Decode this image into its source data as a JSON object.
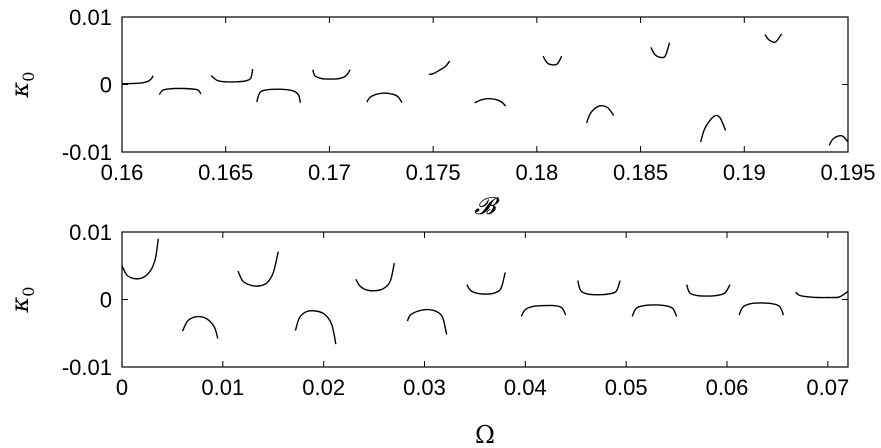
{
  "chart_data": [
    {
      "type": "line",
      "xlabel": "𝓑",
      "ylabel": "κ",
      "ylabel_sub": "0",
      "xlim": [
        0.16,
        0.195
      ],
      "ylim": [
        -0.01,
        0.01
      ],
      "xticks": [
        0.16,
        0.165,
        0.17,
        0.175,
        0.18,
        0.185,
        0.19,
        0.195
      ],
      "xtick_labels": [
        "0.16",
        "0.165",
        "0.17",
        "0.175",
        "0.18",
        "0.185",
        "0.19",
        "0.195"
      ],
      "yticks": [
        -0.01,
        0,
        0.01
      ],
      "ytick_labels": [
        "-0.01",
        "0",
        "0.01"
      ],
      "grid": false,
      "series": [
        {
          "x": [
            0.16,
            0.1608,
            0.1612,
            0.1614,
            0.1615
          ],
          "y": [
            0.0001,
            0.0002,
            0.0004,
            0.0008,
            0.0013
          ]
        },
        {
          "x": [
            0.1618,
            0.162,
            0.1625,
            0.163,
            0.1635,
            0.1637,
            0.1638
          ],
          "y": [
            -0.0015,
            -0.0008,
            -0.0006,
            -0.0006,
            -0.0007,
            -0.0009,
            -0.0014
          ]
        },
        {
          "x": [
            0.1643,
            0.1646,
            0.165,
            0.1655,
            0.1659,
            0.1662,
            0.1663
          ],
          "y": [
            0.0013,
            0.0006,
            0.0004,
            0.0004,
            0.0005,
            0.0009,
            0.0023
          ]
        },
        {
          "x": [
            0.1665,
            0.1666,
            0.1668,
            0.1675,
            0.1682,
            0.1685,
            0.1686
          ],
          "y": [
            -0.0026,
            -0.0015,
            -0.0009,
            -0.0007,
            -0.0009,
            -0.0015,
            -0.0027
          ]
        },
        {
          "x": [
            0.1692,
            0.1693,
            0.1696,
            0.17,
            0.1705,
            0.1708,
            0.171
          ],
          "y": [
            0.0022,
            0.0013,
            0.0009,
            0.0008,
            0.0009,
            0.0013,
            0.0022
          ]
        },
        {
          "x": [
            0.1718,
            0.172,
            0.1725,
            0.173,
            0.1733,
            0.1735
          ],
          "y": [
            -0.0026,
            -0.0018,
            -0.0013,
            -0.0014,
            -0.0018,
            -0.0027
          ]
        },
        {
          "x": [
            0.1748,
            0.175,
            0.1753,
            0.1756,
            0.1758
          ],
          "y": [
            0.0015,
            0.0016,
            0.0021,
            0.0027,
            0.0035
          ]
        },
        {
          "x": [
            0.177,
            0.1773,
            0.1776,
            0.178,
            0.1783,
            0.1785
          ],
          "y": [
            -0.0027,
            -0.0023,
            -0.0021,
            -0.0022,
            -0.0026,
            -0.0032
          ]
        },
        {
          "x": [
            0.1803,
            0.1805,
            0.1808,
            0.181,
            0.1812
          ],
          "y": [
            0.0042,
            0.0032,
            0.0029,
            0.0031,
            0.0042
          ]
        },
        {
          "x": [
            0.1824,
            0.1826,
            0.183,
            0.1834,
            0.1837
          ],
          "y": [
            -0.0057,
            -0.0042,
            -0.0032,
            -0.0034,
            -0.0046
          ]
        },
        {
          "x": [
            0.1855,
            0.1857,
            0.186,
            0.1862,
            0.1864
          ],
          "y": [
            0.0055,
            0.0044,
            0.004,
            0.0043,
            0.0062
          ]
        },
        {
          "x": [
            0.1879,
            0.1881,
            0.1885,
            0.1888,
            0.1891
          ],
          "y": [
            -0.0085,
            -0.0065,
            -0.0048,
            -0.0048,
            -0.0068
          ]
        },
        {
          "x": [
            0.191,
            0.1912,
            0.1915,
            0.1918
          ],
          "y": [
            0.0074,
            0.0066,
            0.0063,
            0.0075
          ]
        },
        {
          "x": [
            0.1941,
            0.1943,
            0.1947,
            0.195
          ],
          "y": [
            -0.009,
            -0.008,
            -0.0076,
            -0.0085
          ]
        }
      ]
    },
    {
      "type": "line",
      "xlabel": "Ω",
      "ylabel": "κ",
      "ylabel_sub": "0",
      "xlim": [
        0,
        0.072
      ],
      "ylim": [
        -0.01,
        0.01
      ],
      "xticks": [
        0,
        0.01,
        0.02,
        0.03,
        0.04,
        0.05,
        0.06,
        0.07
      ],
      "xtick_labels": [
        "0",
        "0.01",
        "0.02",
        "0.03",
        "0.04",
        "0.05",
        "0.06",
        "0.07"
      ],
      "yticks": [
        -0.01,
        0,
        0.01
      ],
      "ytick_labels": [
        "-0.01",
        "0",
        "0.01"
      ],
      "grid": false,
      "series": [
        {
          "x": [
            0,
            0.0005,
            0.0012,
            0.002,
            0.0028,
            0.0033,
            0.0036
          ],
          "y": [
            0.005,
            0.0036,
            0.0031,
            0.0032,
            0.0042,
            0.006,
            0.009
          ]
        },
        {
          "x": [
            0.006,
            0.0065,
            0.0072,
            0.008,
            0.0087,
            0.0092,
            0.0095
          ],
          "y": [
            -0.0047,
            -0.0032,
            -0.0026,
            -0.0026,
            -0.0032,
            -0.0042,
            -0.0058
          ]
        },
        {
          "x": [
            0.0115,
            0.012,
            0.0128,
            0.0136,
            0.0144,
            0.015,
            0.0155
          ],
          "y": [
            0.0042,
            0.0027,
            0.0021,
            0.002,
            0.0025,
            0.004,
            0.0071
          ]
        },
        {
          "x": [
            0.0172,
            0.0176,
            0.0183,
            0.0192,
            0.0201,
            0.0208,
            0.0212
          ],
          "y": [
            -0.0046,
            -0.0027,
            -0.0018,
            -0.0017,
            -0.0022,
            -0.0037,
            -0.0066
          ]
        },
        {
          "x": [
            0.0232,
            0.0236,
            0.0243,
            0.0251,
            0.0259,
            0.0266,
            0.027
          ],
          "y": [
            0.003,
            0.002,
            0.0014,
            0.0013,
            0.0016,
            0.0027,
            0.0054
          ]
        },
        {
          "x": [
            0.0283,
            0.0286,
            0.0294,
            0.0303,
            0.0312,
            0.0318,
            0.0322
          ],
          "y": [
            -0.0032,
            -0.0023,
            -0.0017,
            -0.0015,
            -0.0018,
            -0.0027,
            -0.0052
          ]
        },
        {
          "x": [
            0.0342,
            0.0346,
            0.0353,
            0.0362,
            0.037,
            0.0376,
            0.038
          ],
          "y": [
            0.0022,
            0.0013,
            0.0009,
            0.0008,
            0.001,
            0.0017,
            0.004
          ]
        },
        {
          "x": [
            0.0396,
            0.04,
            0.0408,
            0.0418,
            0.0428,
            0.0436,
            0.044
          ],
          "y": [
            -0.0025,
            -0.0015,
            -0.001,
            -0.0009,
            -0.0009,
            -0.0012,
            -0.0023
          ]
        },
        {
          "x": [
            0.0452,
            0.0455,
            0.0462,
            0.0472,
            0.0482,
            0.049,
            0.0494
          ],
          "y": [
            0.0028,
            0.0013,
            0.0008,
            0.0007,
            0.0008,
            0.0012,
            0.0028
          ]
        },
        {
          "x": [
            0.0506,
            0.051,
            0.0518,
            0.0528,
            0.0538,
            0.0546,
            0.055
          ],
          "y": [
            -0.0025,
            -0.0013,
            -0.0009,
            -0.0008,
            -0.0009,
            -0.0013,
            -0.0025
          ]
        },
        {
          "x": [
            0.056,
            0.0563,
            0.057,
            0.058,
            0.059,
            0.0598,
            0.0603
          ],
          "y": [
            0.0022,
            0.001,
            0.0006,
            0.0005,
            0.0006,
            0.001,
            0.0022
          ]
        },
        {
          "x": [
            0.0612,
            0.0616,
            0.0624,
            0.0634,
            0.0644,
            0.0652,
            0.0656
          ],
          "y": [
            -0.0023,
            -0.0011,
            -0.0006,
            -0.0005,
            -0.0006,
            -0.001,
            -0.0023
          ]
        },
        {
          "x": [
            0.0668,
            0.0672,
            0.068,
            0.069,
            0.07,
            0.0706,
            0.0712,
            0.072
          ],
          "y": [
            0.0011,
            0.0006,
            0.0004,
            0.0003,
            0.0003,
            0.0003,
            0.0004,
            0.0012
          ]
        }
      ]
    }
  ]
}
